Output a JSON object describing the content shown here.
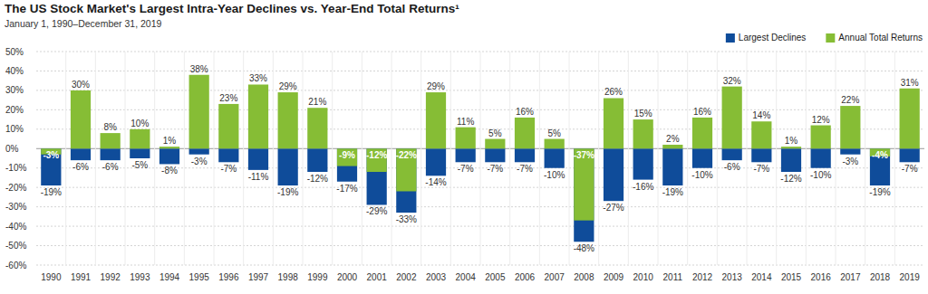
{
  "chart_data": {
    "type": "bar",
    "title": "The US Stock Market's Largest Intra-Year Declines vs. Year-End Total Returns¹",
    "subtitle": "January 1, 1990–December 31, 2019",
    "categories": [
      "1990",
      "1991",
      "1992",
      "1993",
      "1994",
      "1995",
      "1996",
      "1997",
      "1998",
      "1999",
      "2000",
      "2001",
      "2002",
      "2003",
      "2004",
      "2005",
      "2006",
      "2007",
      "2008",
      "2009",
      "2010",
      "2011",
      "2012",
      "2013",
      "2014",
      "2015",
      "2016",
      "2017",
      "2018",
      "2019"
    ],
    "series": [
      {
        "name": "Largest Declines",
        "color": "#0f4c9a",
        "values": [
          -19,
          -6,
          -6,
          -5,
          -8,
          -3,
          -7,
          -11,
          -19,
          -12,
          -17,
          -29,
          -33,
          -14,
          -7,
          -7,
          -7,
          -10,
          -48,
          -27,
          -16,
          -19,
          -10,
          -6,
          -7,
          -12,
          -10,
          -3,
          -19,
          -7
        ],
        "value_labels": [
          "-19%",
          "-6%",
          "-6%",
          "-5%",
          "-8%",
          "-3%",
          "-7%",
          "-11%",
          "-19%",
          "-12%",
          "-17%",
          "-29%",
          "-33%",
          "-14%",
          "-7%",
          "-7%",
          "-7%",
          "-10%",
          "-48%",
          "-27%",
          "-16%",
          "-19%",
          "-10%",
          "-6%",
          "-7%",
          "-12%",
          "-10%",
          "-3%",
          "-19%",
          "-7%"
        ]
      },
      {
        "name": "Annual Total Returns",
        "color": "#86bd35",
        "values": [
          -3,
          30,
          8,
          10,
          1,
          38,
          23,
          33,
          29,
          21,
          -9,
          -12,
          -22,
          29,
          11,
          5,
          16,
          5,
          -37,
          26,
          15,
          2,
          16,
          32,
          14,
          1,
          12,
          22,
          -4,
          31
        ],
        "value_labels": [
          "-3%",
          "30%",
          "8%",
          "10%",
          "1%",
          "38%",
          "23%",
          "33%",
          "29%",
          "21%",
          "-9%",
          "-12%",
          "-22%",
          "29%",
          "11%",
          "5%",
          "16%",
          "5%",
          "-37%",
          "26%",
          "15%",
          "2%",
          "16%",
          "32%",
          "14%",
          "1%",
          "12%",
          "22%",
          "-4%",
          "31%"
        ]
      }
    ],
    "ylim": [
      -60,
      50
    ],
    "yticks": [
      {
        "value": 50,
        "label": "50%"
      },
      {
        "value": 40,
        "label": "40%"
      },
      {
        "value": 30,
        "label": "30%"
      },
      {
        "value": 20,
        "label": "20%"
      },
      {
        "value": 10,
        "label": "10%"
      },
      {
        "value": 0,
        "label": "0%"
      },
      {
        "value": -10,
        "label": "-10%"
      },
      {
        "value": -20,
        "label": "-20%"
      },
      {
        "value": -30,
        "label": "-30%"
      },
      {
        "value": -40,
        "label": "-40%"
      },
      {
        "value": -50,
        "label": "-50%"
      },
      {
        "value": -60,
        "label": "-60%"
      }
    ],
    "grid": true,
    "legend": "top-right",
    "data_labels": true
  }
}
